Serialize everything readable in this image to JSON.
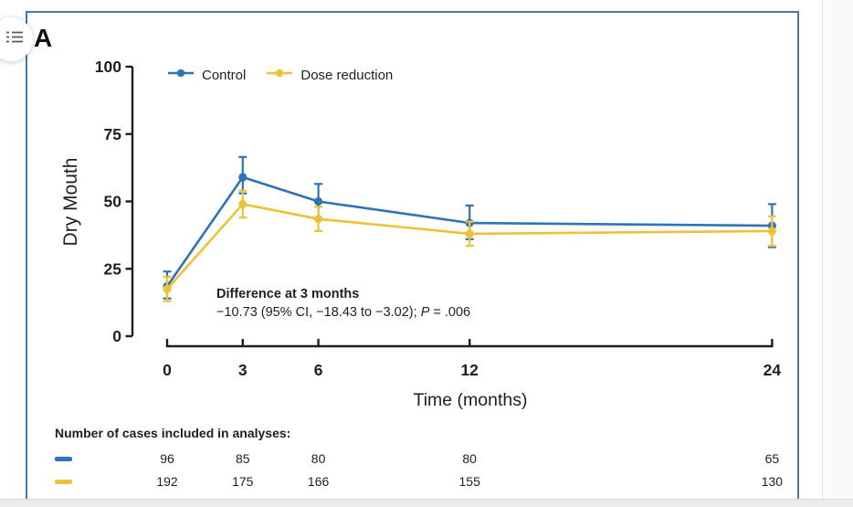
{
  "page": {
    "panel_label": "A"
  },
  "chart_data": {
    "type": "line",
    "xlabel": "Time (months)",
    "ylabel": "Dry Mouth",
    "x_ticks": [
      0,
      3,
      6,
      12,
      24
    ],
    "y_ticks": [
      0,
      25,
      50,
      75,
      100
    ],
    "xlim": [
      0,
      24
    ],
    "ylim": [
      0,
      100
    ],
    "grid": false,
    "legend_position": "top-left-inside",
    "error_bars": true,
    "series": [
      {
        "name": "Control",
        "color": "#2e74b5",
        "x": [
          0,
          3,
          6,
          12,
          24
        ],
        "y": [
          18.5,
          59,
          50,
          42,
          41
        ],
        "ci_low": [
          14,
          53,
          43.5,
          36,
          33
        ],
        "ci_high": [
          24,
          66.5,
          56.5,
          48.5,
          49
        ]
      },
      {
        "name": "Dose reduction",
        "color": "#edc237",
        "x": [
          0,
          3,
          6,
          12,
          24
        ],
        "y": [
          17.5,
          49,
          43.5,
          38,
          39
        ],
        "ci_low": [
          13,
          44,
          39,
          33.5,
          33.5
        ],
        "ci_high": [
          22,
          54,
          48,
          42.5,
          44.5
        ]
      }
    ],
    "annotation": {
      "title": "Difference at 3 months",
      "body_prefix": "−10.73 (95% CI, −18.43 to −3.02); ",
      "p_symbol": "P",
      "p_value": " = .006"
    }
  },
  "cases_table": {
    "heading": "Number of cases included in analyses:",
    "rows": [
      {
        "name": "Control",
        "color": "#2e74b5",
        "values": [
          "96",
          "85",
          "80",
          "80",
          "65"
        ]
      },
      {
        "name": "Dose reduction",
        "color": "#edc237",
        "values": [
          "192",
          "175",
          "166",
          "155",
          "130"
        ]
      }
    ]
  }
}
